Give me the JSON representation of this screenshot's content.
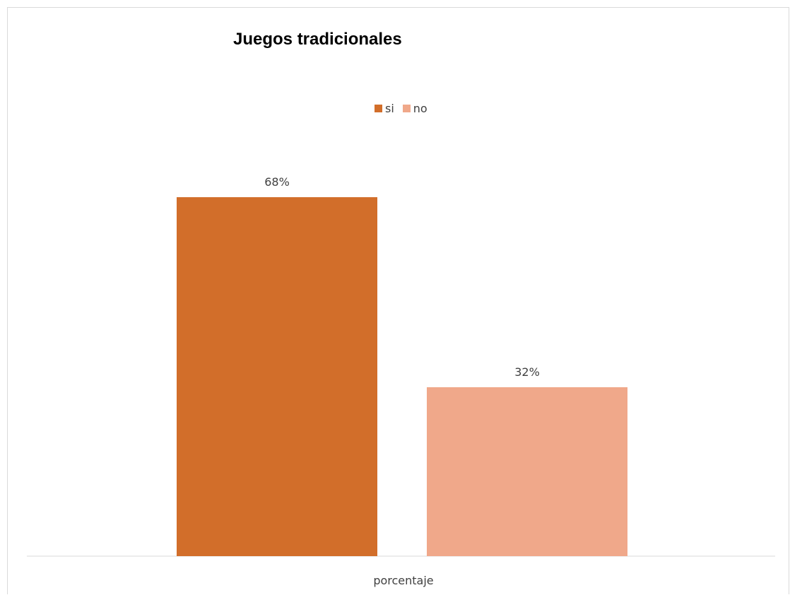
{
  "chart_data": {
    "type": "bar",
    "title": "Juegos tradicionales",
    "categories": [
      "porcentaje"
    ],
    "series": [
      {
        "name": "si",
        "values": [
          68
        ],
        "label": "68%",
        "color": "#d26e2a"
      },
      {
        "name": "no",
        "values": [
          32
        ],
        "label": "32%",
        "color": "#f0a88a"
      }
    ],
    "ylim": [
      0,
      100
    ],
    "grid": false,
    "legend": "top-center",
    "xlabel": "",
    "ylabel": ""
  }
}
